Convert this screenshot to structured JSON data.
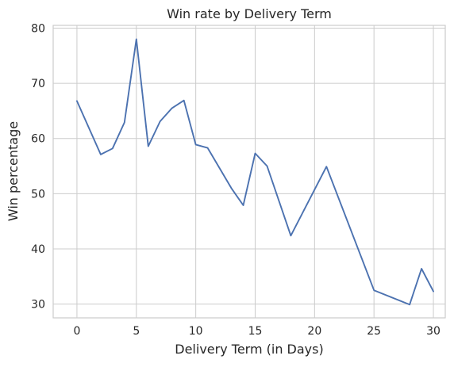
{
  "chart_data": {
    "type": "line",
    "title": "Win rate by Delivery Term",
    "xlabel": "Delivery Term (in Days)",
    "ylabel": "Win percentage",
    "xlim": [
      -2,
      31
    ],
    "ylim": [
      27.5,
      80.5
    ],
    "xticks": [
      0,
      5,
      10,
      15,
      20,
      25,
      30
    ],
    "yticks": [
      30,
      40,
      50,
      60,
      70,
      80
    ],
    "grid": true,
    "color": "#4c72b0",
    "series": [
      {
        "x": [
          0,
          2,
          3,
          4,
          5,
          6,
          7,
          8,
          9,
          10,
          11,
          13,
          14,
          15,
          16,
          18,
          21,
          25,
          28,
          29,
          30
        ],
        "y": [
          66.8,
          57.1,
          58.2,
          62.9,
          78.0,
          58.6,
          63.1,
          65.5,
          66.9,
          58.9,
          58.3,
          51.0,
          47.9,
          57.3,
          55.0,
          42.4,
          54.9,
          32.5,
          29.9,
          36.4,
          32.3
        ]
      }
    ]
  }
}
